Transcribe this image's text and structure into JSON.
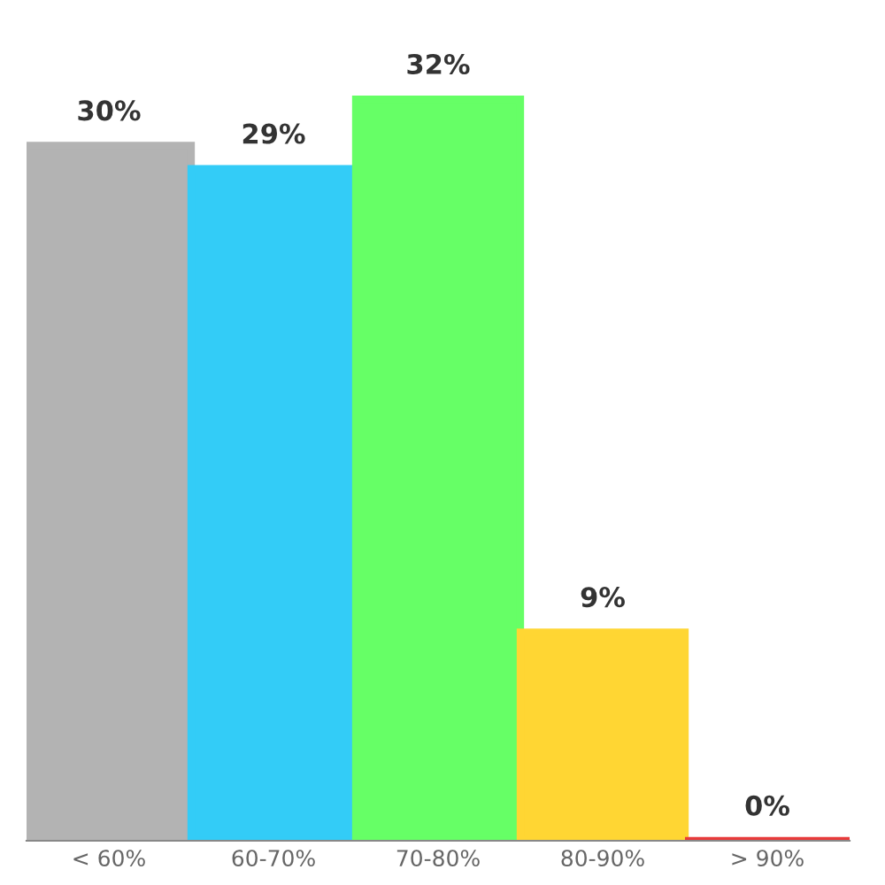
{
  "chart_data": {
    "type": "bar",
    "categories": [
      "< 60%",
      "60-70%",
      "70-80%",
      "80-90%",
      "> 90%"
    ],
    "values": [
      30,
      29,
      32,
      9,
      0
    ],
    "value_labels": [
      "30%",
      "29%",
      "32%",
      "9%",
      "0%"
    ],
    "colors": [
      "#b3b3b3",
      "#33ccf7",
      "#66ff66",
      "#ffd633",
      "#e83a3a"
    ],
    "tick_labels": "x",
    "grid": false,
    "legend": false
  }
}
